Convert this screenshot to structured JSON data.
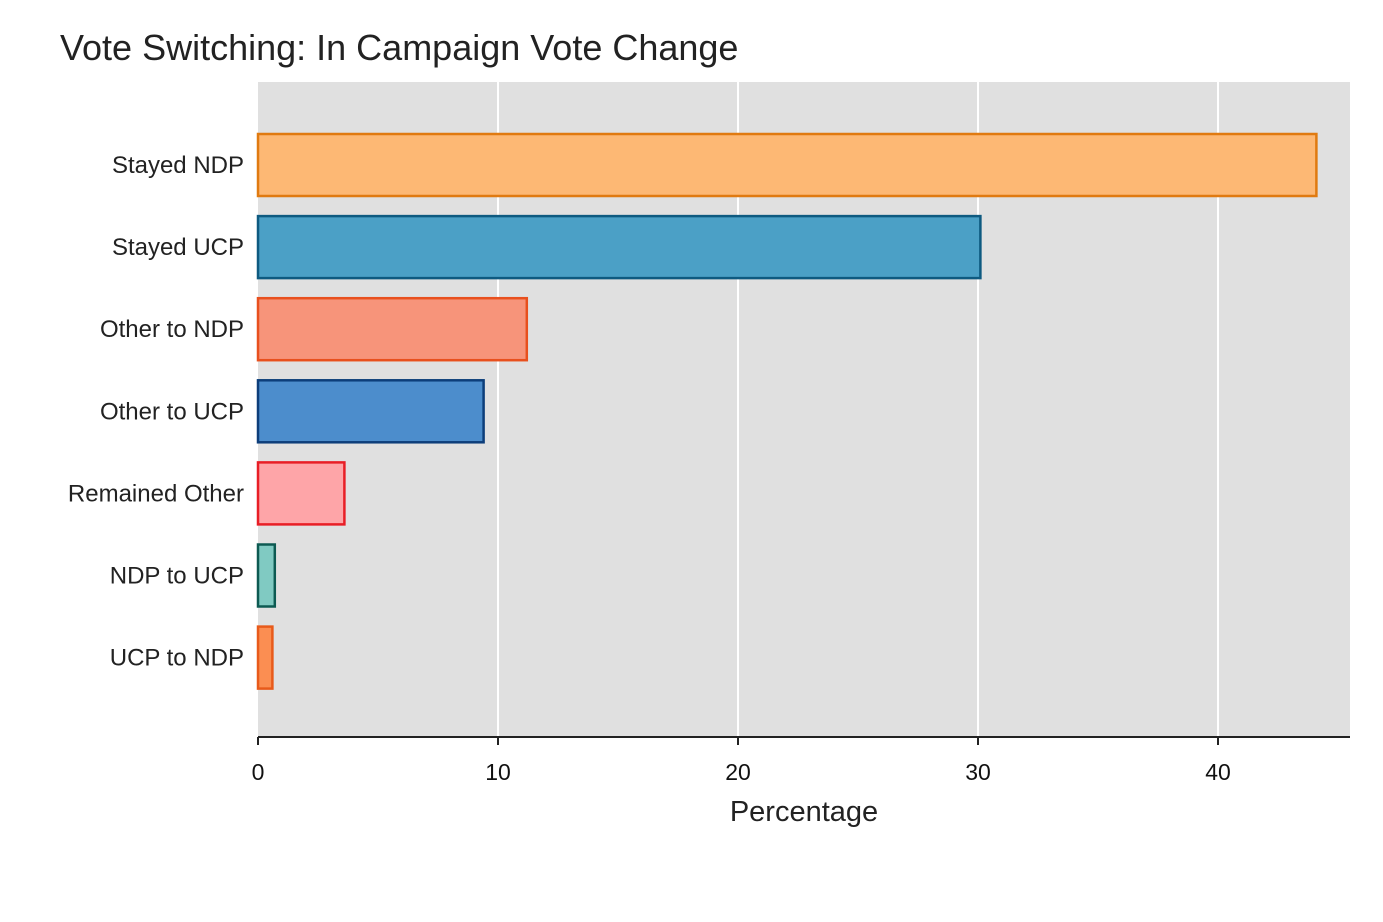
{
  "chart_data": {
    "type": "bar",
    "orientation": "horizontal",
    "title": "Vote Switching: In Campaign Vote Change",
    "xlabel": "Percentage",
    "ylabel": "",
    "xlim": [
      0,
      45.5
    ],
    "x_ticks": [
      "0",
      "10",
      "20",
      "30",
      "40"
    ],
    "x_tick_values": [
      0,
      10,
      20,
      30,
      40
    ],
    "grid": "vertical major gridlines (white) on grey panel",
    "panel_background": "#E0E0E0",
    "categories": [
      "Stayed NDP",
      "Stayed UCP",
      "Other to NDP",
      "Other to UCP",
      "Remained Other",
      "NDP to UCP",
      "UCP to NDP"
    ],
    "values": [
      44.1,
      30.1,
      11.2,
      9.4,
      3.6,
      0.7,
      0.6
    ],
    "fill_colors": [
      "#FDB874",
      "#4BA0C6",
      "#F7947A",
      "#4C8DCC",
      "#FEA5A8",
      "#80CAC2",
      "#FB8E52"
    ],
    "stroke_colors": [
      "#E07A10",
      "#0E5A80",
      "#E8501E",
      "#0D3E7A",
      "#E81E26",
      "#0D5A52",
      "#E85A1A"
    ]
  }
}
